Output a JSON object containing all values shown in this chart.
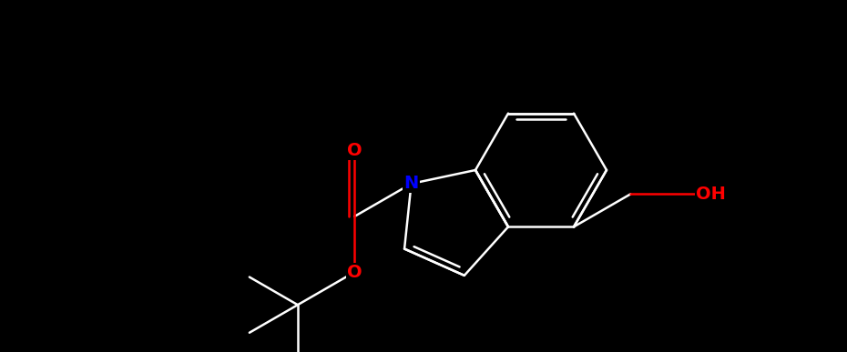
{
  "background_color": "#000000",
  "bond_color": "#ffffff",
  "atom_colors": {
    "O": "#ff0000",
    "N": "#0000ff",
    "C": "#ffffff",
    "H": "#ffffff"
  },
  "figsize": [
    9.3,
    3.87
  ],
  "dpi": 100,
  "bond_width": 1.8,
  "font_size": 14
}
